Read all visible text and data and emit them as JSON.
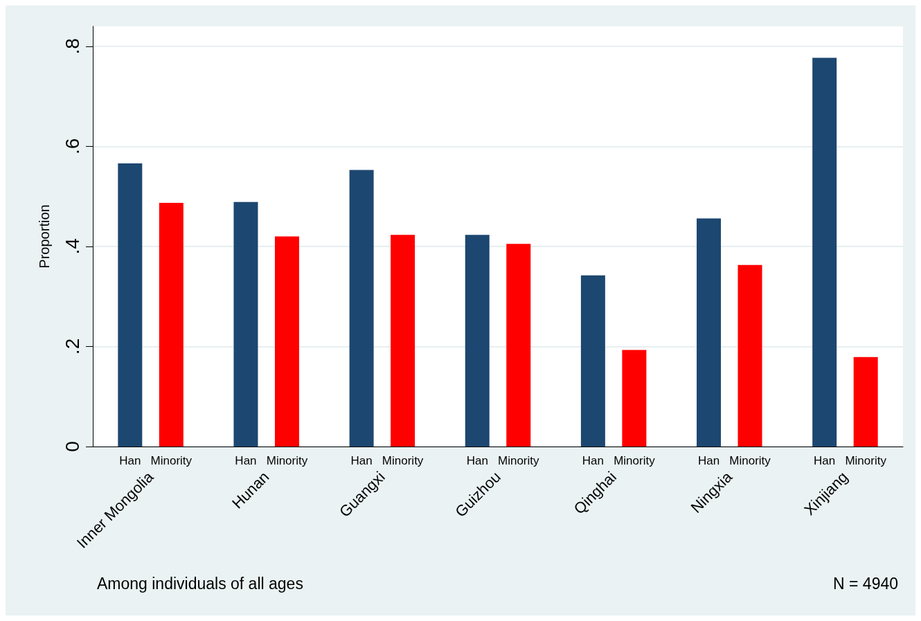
{
  "chart_data": {
    "type": "bar",
    "ylabel": "Proportion",
    "categories": [
      "Inner Mongolia",
      "Hunan",
      "Guangxi",
      "Guizhou",
      "Qinghai",
      "Ningxia",
      "Xinjiang"
    ],
    "series": [
      {
        "name": "Han",
        "color": "#1c4770",
        "values": [
          0.566,
          0.489,
          0.553,
          0.423,
          0.342,
          0.456,
          0.777
        ]
      },
      {
        "name": "Minority",
        "color": "#ff0000",
        "values": [
          0.487,
          0.42,
          0.423,
          0.405,
          0.193,
          0.363,
          0.179
        ]
      }
    ],
    "ylim": [
      0,
      0.84
    ],
    "yticks": [
      0,
      {
        "value": 0.2,
        "label": ".2"
      },
      {
        "value": 0.4,
        "label": ".4"
      },
      {
        "value": 0.6,
        "label": ".6"
      },
      {
        "value": 0.8,
        "label": ".8"
      }
    ],
    "grid": "y",
    "legend": false,
    "annotations": [
      "Among individuals of all ages",
      "N = 4940"
    ]
  }
}
